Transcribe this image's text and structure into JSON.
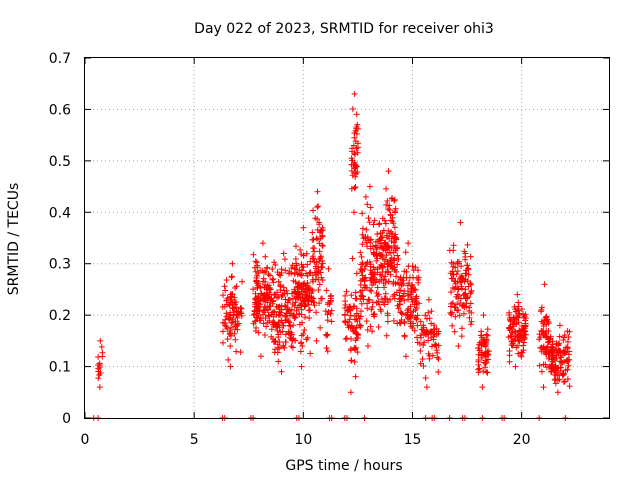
{
  "chart_data": {
    "type": "scatter",
    "title": "Day 022 of 2023, SRMTID for receiver ohi3",
    "xlabel": "GPS time / hours",
    "ylabel": "SRMTID / TECUs",
    "xlim": [
      0,
      24
    ],
    "ylim": [
      0,
      0.7
    ],
    "xticks": [
      "0",
      "5",
      "10",
      "15",
      "20"
    ],
    "yticks": [
      "0",
      "0.1",
      "0.2",
      "0.3",
      "0.4",
      "0.5",
      "0.6",
      "0.7"
    ],
    "grid": true,
    "legend": "none",
    "marker": "+",
    "color": "#ff0000",
    "series": [
      {
        "name": "SRMTID",
        "clusters": [
          {
            "x0": 0.6,
            "x1": 0.8,
            "ymin": 0.06,
            "ymax": 0.15,
            "n": 14
          },
          {
            "x0": 6.3,
            "x1": 7.2,
            "ymin": 0.1,
            "ymax": 0.3,
            "n": 90
          },
          {
            "x0": 7.7,
            "x1": 8.6,
            "ymin": 0.12,
            "ymax": 0.34,
            "n": 140
          },
          {
            "x0": 8.6,
            "x1": 9.6,
            "ymin": 0.09,
            "ymax": 0.32,
            "n": 140
          },
          {
            "x0": 9.6,
            "x1": 10.4,
            "ymin": 0.1,
            "ymax": 0.37,
            "n": 130
          },
          {
            "x0": 10.4,
            "x1": 10.9,
            "ymin": 0.15,
            "ymax": 0.44,
            "n": 70
          },
          {
            "x0": 11.0,
            "x1": 11.3,
            "ymin": 0.13,
            "ymax": 0.29,
            "n": 20
          },
          {
            "x0": 11.9,
            "x1": 12.6,
            "ymin": 0.05,
            "ymax": 0.31,
            "n": 70
          },
          {
            "x0": 12.2,
            "x1": 12.5,
            "ymin": 0.4,
            "ymax": 0.63,
            "n": 40
          },
          {
            "x0": 12.6,
            "x1": 13.5,
            "ymin": 0.14,
            "ymax": 0.45,
            "n": 130
          },
          {
            "x0": 13.5,
            "x1": 14.3,
            "ymin": 0.16,
            "ymax": 0.48,
            "n": 150
          },
          {
            "x0": 14.3,
            "x1": 15.3,
            "ymin": 0.12,
            "ymax": 0.34,
            "n": 110
          },
          {
            "x0": 15.3,
            "x1": 16.2,
            "ymin": 0.06,
            "ymax": 0.23,
            "n": 60
          },
          {
            "x0": 16.7,
            "x1": 17.7,
            "ymin": 0.14,
            "ymax": 0.38,
            "n": 110
          },
          {
            "x0": 18.0,
            "x1": 18.5,
            "ymin": 0.06,
            "ymax": 0.2,
            "n": 60
          },
          {
            "x0": 19.4,
            "x1": 20.2,
            "ymin": 0.1,
            "ymax": 0.24,
            "n": 110
          },
          {
            "x0": 20.8,
            "x1": 21.3,
            "ymin": 0.06,
            "ymax": 0.26,
            "n": 60
          },
          {
            "x0": 21.3,
            "x1": 22.2,
            "ymin": 0.05,
            "ymax": 0.18,
            "n": 110
          }
        ],
        "zero_values_at_x": [
          0.4,
          0.6,
          6.3,
          6.4,
          7.6,
          7.7,
          9.7,
          9.8,
          11.2,
          11.3,
          11.9,
          12.0,
          12.8,
          15.6,
          15.9,
          16.0,
          16.7,
          17.3,
          17.4,
          18.2,
          19.1,
          19.2,
          20.8,
          22.0
        ]
      }
    ]
  }
}
